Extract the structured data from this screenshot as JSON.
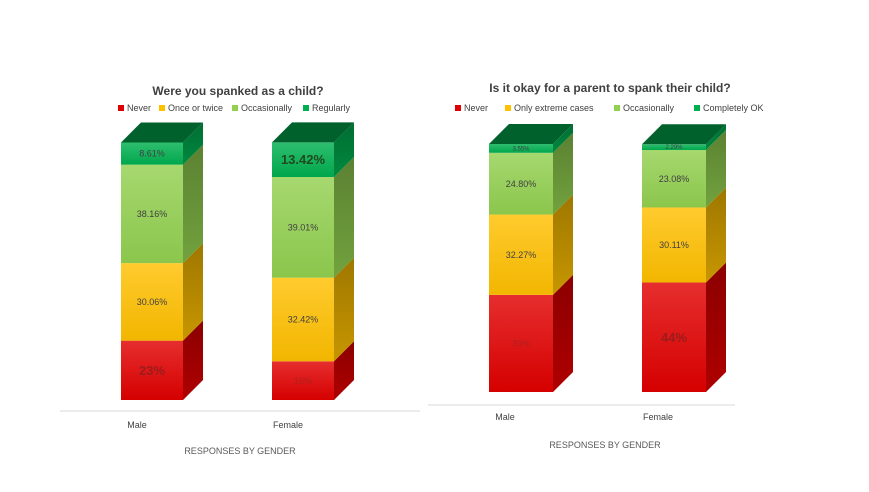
{
  "colors": {
    "never": "#e00000",
    "once": "#ffc000",
    "occasionally": "#92d050",
    "regularly": "#00b050"
  },
  "chart_data": [
    {
      "type": "bar",
      "stacked": true,
      "title": "Were you spanked as a child?",
      "xlabel": "RESPONSES BY GENDER",
      "categories": [
        "Male",
        "Female"
      ],
      "legend_position": "top",
      "series": [
        {
          "name": "Never",
          "color_key": "never",
          "values": [
            23,
            15
          ],
          "labels": [
            "23%",
            "15%"
          ]
        },
        {
          "name": "Once or twice",
          "color_key": "once",
          "values": [
            30.06,
            32.42
          ],
          "labels": [
            "30.06%",
            "32.42%"
          ]
        },
        {
          "name": "Occasionally",
          "color_key": "occasionally",
          "values": [
            38.16,
            39.01
          ],
          "labels": [
            "38.16%",
            "39.01%"
          ]
        },
        {
          "name": "Regularly",
          "color_key": "regularly",
          "values": [
            8.61,
            13.42
          ],
          "labels": [
            "8.61%",
            "13.42%"
          ]
        }
      ]
    },
    {
      "type": "bar",
      "stacked": true,
      "title": "Is it okay for a parent to spank their child?",
      "xlabel": "RESPONSES BY GENDER",
      "categories": [
        "Male",
        "Female"
      ],
      "legend_position": "top",
      "series": [
        {
          "name": "Never",
          "color_key": "never",
          "values": [
            39,
            44
          ],
          "labels": [
            "39%",
            "44%"
          ]
        },
        {
          "name": "Only extreme cases",
          "color_key": "once",
          "values": [
            32.27,
            30.11
          ],
          "labels": [
            "32.27%",
            "30.11%"
          ]
        },
        {
          "name": "Occasionally",
          "color_key": "occasionally",
          "values": [
            24.8,
            23.08
          ],
          "labels": [
            "24.80%",
            "23.08%"
          ]
        },
        {
          "name": "Completely OK",
          "color_key": "regularly",
          "values": [
            3.55,
            2.29
          ],
          "labels": [
            "3.55%",
            "2.29%"
          ]
        }
      ]
    }
  ]
}
